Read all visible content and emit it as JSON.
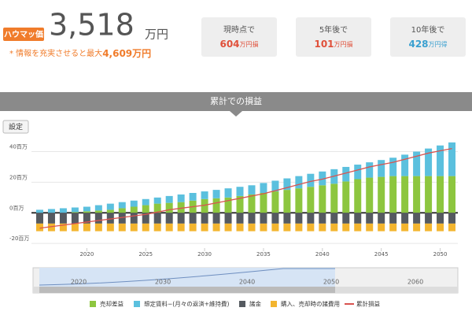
{
  "header": {
    "badge": "ハウマッ価",
    "price": "3,518",
    "price_unit": "万円",
    "note": "* 情報を充実させると最大",
    "note_value": "4,609万円"
  },
  "summary": [
    {
      "label": "現時点で",
      "value": "604",
      "unit": "万円損",
      "color": "#e0503a"
    },
    {
      "label": "5年後で",
      "value": "101",
      "unit": "万円損",
      "color": "#e0503a"
    },
    {
      "label": "10年後で",
      "value": "428",
      "unit": "万円得",
      "color": "#3aa0d0"
    }
  ],
  "section_title": "累計での損益",
  "settings_button": "設定",
  "chart_data": {
    "type": "bar",
    "x": [
      2016,
      2017,
      2018,
      2019,
      2020,
      2021,
      2022,
      2023,
      2024,
      2025,
      2026,
      2027,
      2028,
      2029,
      2030,
      2031,
      2032,
      2033,
      2034,
      2035,
      2036,
      2037,
      2038,
      2039,
      2040,
      2041,
      2042,
      2043,
      2044,
      2045,
      2046,
      2047,
      2048,
      2049,
      2050,
      2051
    ],
    "xlim": [
      2015.3,
      2051.5
    ],
    "xticks": [
      2020,
      2025,
      2030,
      2035,
      2040,
      2045,
      2050
    ],
    "ylim": [
      -23,
      49
    ],
    "yticks": [
      {
        "value": -20,
        "label": "-20百万"
      },
      {
        "value": 0,
        "label": "0百万"
      },
      {
        "value": 20,
        "label": "20百万"
      },
      {
        "value": 40,
        "label": "40百万"
      }
    ],
    "grid": true,
    "series": [
      {
        "name": "売却差益",
        "color": "#8dc63f",
        "values": [
          0,
          0,
          0,
          0.5,
          1,
          1.5,
          2,
          3,
          4,
          5,
          6,
          6.5,
          7,
          8,
          9,
          9.5,
          10,
          11,
          12,
          13,
          14,
          15,
          16,
          17,
          18,
          19,
          20.5,
          22,
          23,
          23.5,
          24,
          24,
          24,
          24,
          24,
          24
        ]
      },
      {
        "name": "想定賃料−(月々の返済+維持費)",
        "color": "#5bc0de",
        "values": [
          2,
          2.5,
          3,
          3,
          3,
          3.5,
          4,
          4,
          4,
          4,
          4,
          4.5,
          5,
          5,
          5,
          5.5,
          6,
          6,
          6,
          6.5,
          7,
          7.5,
          8,
          8.5,
          9,
          9.5,
          9.5,
          9.5,
          10,
          11,
          12,
          14,
          16,
          18,
          20,
          22
        ]
      },
      {
        "name": "諸金",
        "color": "#555a60",
        "values": [
          -7,
          -7,
          -7,
          -7,
          -7,
          -7,
          -7,
          -7,
          -7,
          -7,
          -7,
          -7,
          -7,
          -7,
          -7,
          -7,
          -7,
          -7,
          -7,
          -7,
          -7,
          -7,
          -7,
          -7,
          -7,
          -7,
          -7,
          -7,
          -7,
          -7,
          -7,
          -7,
          -7,
          -7,
          -7,
          -7
        ]
      },
      {
        "name": "購入、売却時の諸費用",
        "color": "#f3b52f",
        "values": [
          -5,
          -5,
          -5,
          -5,
          -5,
          -5,
          -5,
          -5,
          -5,
          -5,
          -5,
          -5,
          -5,
          -5,
          -5,
          -5,
          -5,
          -5,
          -5,
          -5,
          -5,
          -5,
          -5,
          -5,
          -5,
          -5,
          -5,
          -5,
          -5,
          -5,
          -5,
          -5,
          -5,
          -5,
          -5,
          -5
        ]
      },
      {
        "name": "累計損益",
        "color": "#d9534f",
        "type": "line",
        "values": [
          -10,
          -9,
          -8,
          -7,
          -6,
          -5,
          -4,
          -3,
          -2,
          -1,
          0.5,
          2,
          3,
          4,
          5,
          6.5,
          8,
          9.5,
          11,
          12.5,
          14.5,
          16.5,
          18.5,
          20.5,
          22,
          24,
          26,
          28,
          30,
          31.5,
          33,
          35,
          37,
          39,
          40.5,
          42
        ]
      }
    ]
  },
  "navigator": {
    "labels": [
      "2020",
      "2030",
      "2040",
      "2050",
      "2060"
    ]
  }
}
